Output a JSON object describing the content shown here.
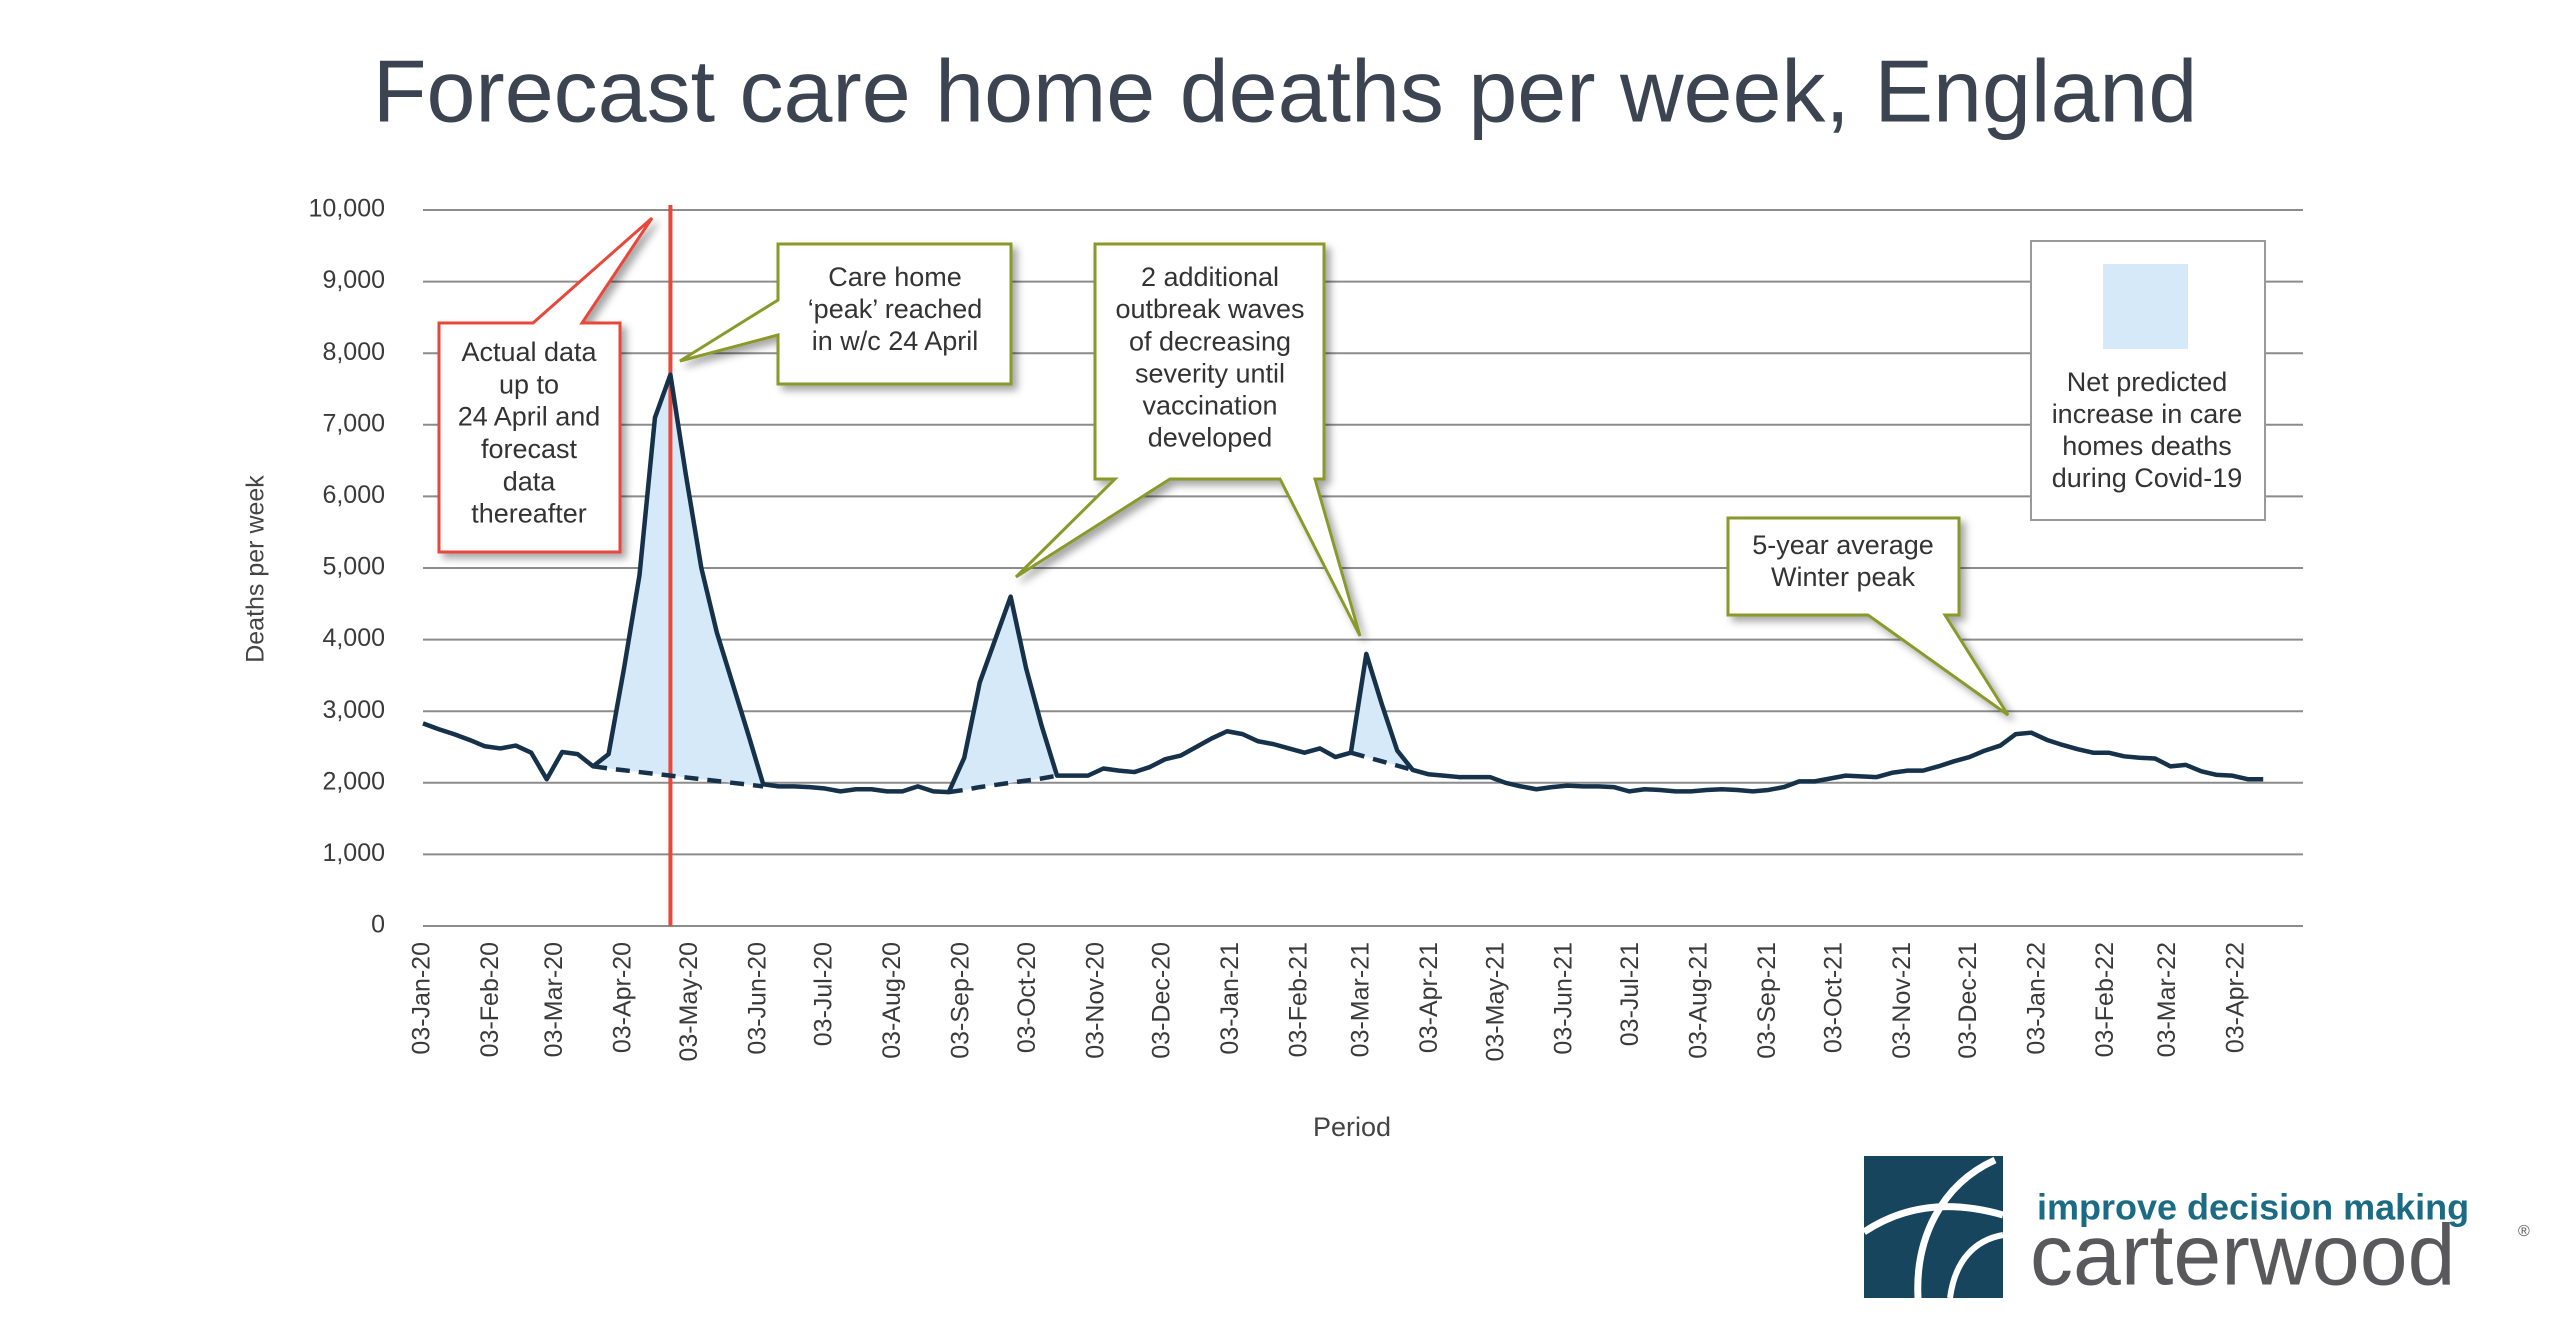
{
  "chart_data": {
    "type": "line",
    "title": "Forecast care home deaths per week, England",
    "y_label": "Deaths per week",
    "x_label": "Period",
    "x": [
      "2020-01-03",
      "2020-01-10",
      "2020-01-17",
      "2020-01-24",
      "2020-01-31",
      "2020-02-07",
      "2020-02-14",
      "2020-02-21",
      "2020-02-28",
      "2020-03-06",
      "2020-03-13",
      "2020-03-20",
      "2020-03-27",
      "2020-04-03",
      "2020-04-10",
      "2020-04-17",
      "2020-04-24",
      "2020-05-01",
      "2020-05-08",
      "2020-05-15",
      "2020-05-22",
      "2020-05-29",
      "2020-06-05",
      "2020-06-12",
      "2020-06-19",
      "2020-06-26",
      "2020-07-03",
      "2020-07-10",
      "2020-07-17",
      "2020-07-24",
      "2020-07-31",
      "2020-08-07",
      "2020-08-14",
      "2020-08-21",
      "2020-08-28",
      "2020-09-04",
      "2020-09-11",
      "2020-09-18",
      "2020-09-25",
      "2020-10-02",
      "2020-10-09",
      "2020-10-16",
      "2020-10-23",
      "2020-10-30",
      "2020-11-06",
      "2020-11-13",
      "2020-11-20",
      "2020-11-27",
      "2020-12-04",
      "2020-12-11",
      "2020-12-18",
      "2020-12-25",
      "2021-01-01",
      "2021-01-08",
      "2021-01-15",
      "2021-01-22",
      "2021-01-29",
      "2021-02-05",
      "2021-02-12",
      "2021-02-19",
      "2021-02-26",
      "2021-03-05",
      "2021-03-12",
      "2021-03-19",
      "2021-03-26",
      "2021-04-02",
      "2021-04-09",
      "2021-04-16",
      "2021-04-23",
      "2021-04-30",
      "2021-05-07",
      "2021-05-14",
      "2021-05-21",
      "2021-05-28",
      "2021-06-04",
      "2021-06-11",
      "2021-06-18",
      "2021-06-25",
      "2021-07-02",
      "2021-07-09",
      "2021-07-16",
      "2021-07-23",
      "2021-07-30",
      "2021-08-06",
      "2021-08-13",
      "2021-08-20",
      "2021-08-27",
      "2021-09-03",
      "2021-09-10",
      "2021-09-17",
      "2021-09-24",
      "2021-10-01",
      "2021-10-08",
      "2021-10-15",
      "2021-10-22",
      "2021-10-29",
      "2021-11-05",
      "2021-11-12",
      "2021-11-19",
      "2021-11-26",
      "2021-12-03",
      "2021-12-10",
      "2021-12-17",
      "2021-12-24",
      "2021-12-31",
      "2022-01-07",
      "2022-01-14",
      "2022-01-21",
      "2022-01-28",
      "2022-02-04",
      "2022-02-11",
      "2022-02-18",
      "2022-02-25",
      "2022-03-04",
      "2022-03-11",
      "2022-03-18",
      "2022-03-25",
      "2022-04-01",
      "2022-04-08",
      "2022-04-15"
    ],
    "series": [
      {
        "color": "#15324a",
        "values": [
          2830,
          2750,
          2680,
          2600,
          2510,
          2480,
          2520,
          2420,
          2050,
          2430,
          2400,
          2230,
          2400,
          3600,
          4900,
          7100,
          7700,
          6300,
          5000,
          4100,
          3400,
          2700,
          1980,
          1950,
          1950,
          1940,
          1920,
          1880,
          1910,
          1910,
          1880,
          1880,
          1950,
          1880,
          1870,
          2350,
          3400,
          4000,
          4600,
          3600,
          2800,
          2100,
          2100,
          2100,
          2200,
          2170,
          2150,
          2220,
          2330,
          2380,
          2500,
          2620,
          2720,
          2680,
          2580,
          2540,
          2480,
          2420,
          2480,
          2360,
          2420,
          3800,
          3100,
          2450,
          2180,
          2120,
          2100,
          2080,
          2080,
          2080,
          2000,
          1950,
          1910,
          1940,
          1960,
          1950,
          1950,
          1940,
          1880,
          1910,
          1900,
          1880,
          1880,
          1900,
          1910,
          1900,
          1880,
          1900,
          1940,
          2020,
          2020,
          2060,
          2100,
          2090,
          2080,
          2140,
          2170,
          2170,
          2230,
          2300,
          2360,
          2450,
          2520,
          2680,
          2700,
          2600,
          2530,
          2470,
          2420,
          2420,
          2370,
          2350,
          2340,
          2230,
          2250,
          2160,
          2110,
          2100,
          2050,
          2050
        ]
      },
      {
        "color": "#15324a",
        "dash": true,
        "values": [
          null,
          null,
          null,
          null,
          null,
          null,
          null,
          null,
          null,
          null,
          null,
          2230,
          2200,
          2175,
          2150,
          2125,
          2100,
          2075,
          2050,
          2025,
          2000,
          1975,
          1950,
          null,
          null,
          null,
          null,
          null,
          null,
          null,
          null,
          null,
          null,
          null,
          1870,
          1900,
          1940,
          1970,
          2000,
          2030,
          2060,
          2100,
          null,
          null,
          null,
          null,
          null,
          null,
          null,
          null,
          null,
          null,
          null,
          null,
          null,
          null,
          null,
          null,
          null,
          null,
          2420,
          2360,
          2300,
          2240,
          2180,
          null,
          null,
          null,
          null,
          null,
          null,
          null,
          null,
          null,
          null,
          null,
          null,
          null,
          null,
          null,
          null,
          null,
          null,
          null,
          null,
          null,
          null,
          null,
          null,
          null,
          null,
          null,
          null,
          null,
          null,
          null,
          null,
          null,
          null,
          null,
          null,
          null,
          null,
          null,
          null,
          null,
          null,
          null,
          null,
          null,
          null,
          null,
          null,
          null,
          null,
          null,
          null,
          null,
          null,
          null
        ]
      }
    ],
    "area": {
      "color": "#d6e9f8",
      "legend": [
        "Net predicted",
        "increase in care",
        "homes deaths",
        "during Covid-19"
      ]
    },
    "legend_position": "top-right",
    "vline": {
      "x": "2020-04-24",
      "color": "#e8473a"
    },
    "xlim": [
      "2020-01-03",
      "2022-05-03"
    ],
    "xticks": [
      {
        "value": "2020-01-03",
        "label": "03-Jan-20"
      },
      {
        "value": "2020-02-03",
        "label": "03-Feb-20"
      },
      {
        "value": "2020-03-03",
        "label": "03-Mar-20"
      },
      {
        "value": "2020-04-03",
        "label": "03-Apr-20"
      },
      {
        "value": "2020-05-03",
        "label": "03-May-20"
      },
      {
        "value": "2020-06-03",
        "label": "03-Jun-20"
      },
      {
        "value": "2020-07-03",
        "label": "03-Jul-20"
      },
      {
        "value": "2020-08-03",
        "label": "03-Aug-20"
      },
      {
        "value": "2020-09-03",
        "label": "03-Sep-20"
      },
      {
        "value": "2020-10-03",
        "label": "03-Oct-20"
      },
      {
        "value": "2020-11-03",
        "label": "03-Nov-20"
      },
      {
        "value": "2020-12-03",
        "label": "03-Dec-20"
      },
      {
        "value": "2021-01-03",
        "label": "03-Jan-21"
      },
      {
        "value": "2021-02-03",
        "label": "03-Feb-21"
      },
      {
        "value": "2021-03-03",
        "label": "03-Mar-21"
      },
      {
        "value": "2021-04-03",
        "label": "03-Apr-21"
      },
      {
        "value": "2021-05-03",
        "label": "03-May-21"
      },
      {
        "value": "2021-06-03",
        "label": "03-Jun-21"
      },
      {
        "value": "2021-07-03",
        "label": "03-Jul-21"
      },
      {
        "value": "2021-08-03",
        "label": "03-Aug-21"
      },
      {
        "value": "2021-09-03",
        "label": "03-Sep-21"
      },
      {
        "value": "2021-10-03",
        "label": "03-Oct-21"
      },
      {
        "value": "2021-11-03",
        "label": "03-Nov-21"
      },
      {
        "value": "2021-12-03",
        "label": "03-Dec-21"
      },
      {
        "value": "2022-01-03",
        "label": "03-Jan-22"
      },
      {
        "value": "2022-02-03",
        "label": "03-Feb-22"
      },
      {
        "value": "2022-03-03",
        "label": "03-Mar-22"
      },
      {
        "value": "2022-04-03",
        "label": "03-Apr-22"
      }
    ],
    "ylim": [
      0,
      10000
    ],
    "yticks": [
      0,
      {
        "value": 1000,
        "label": "1,000"
      },
      {
        "value": 2000,
        "label": "2,000"
      },
      {
        "value": 3000,
        "label": "3,000"
      },
      {
        "value": 4000,
        "label": "4,000"
      },
      {
        "value": 5000,
        "label": "5,000"
      },
      {
        "value": 6000,
        "label": "6,000"
      },
      {
        "value": 7000,
        "label": "7,000"
      },
      {
        "value": 8000,
        "label": "8,000"
      },
      {
        "value": 9000,
        "label": "9,000"
      },
      {
        "value": 10000,
        "label": "10,000"
      }
    ],
    "grid": true,
    "annotations": [
      {
        "lines": [
          "Actual data",
          "up to",
          "24 April and",
          "forecast",
          "data",
          "thereafter"
        ]
      },
      {
        "lines": [
          "Care home",
          "‘peak’ reached",
          "in w/c 24 April"
        ]
      },
      {
        "lines": [
          "2 additional",
          "outbreak waves",
          "of decreasing",
          "severity until",
          "vaccination",
          "developed"
        ]
      },
      {
        "lines": [
          "5-year average",
          "Winter peak"
        ]
      }
    ]
  },
  "logo": {
    "tagline": "improve decision making",
    "name": "carterwood",
    "mark": "®"
  }
}
